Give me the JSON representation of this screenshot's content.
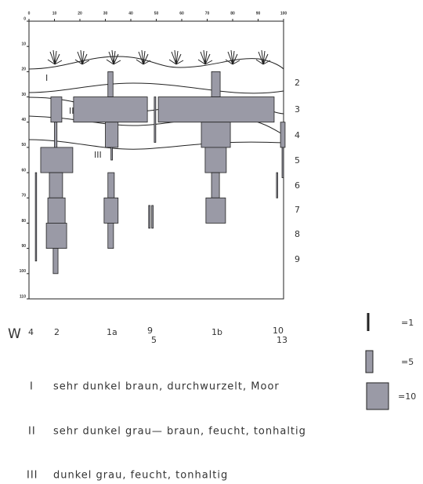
{
  "xticks": [
    0,
    10,
    20,
    30,
    40,
    50,
    60,
    70,
    80,
    90,
    100
  ],
  "yticks": [
    0,
    10,
    20,
    30,
    40,
    50,
    60,
    70,
    80,
    90,
    100,
    110
  ],
  "horizon_labels": [
    "I",
    "II",
    "III"
  ],
  "depth_labels": [
    "2",
    "3",
    "4",
    "5",
    "6",
    "7",
    "8",
    "9"
  ],
  "profile_labels": [
    "W",
    "4",
    "2",
    "1a",
    "9",
    "5",
    "1b",
    "10",
    "13"
  ],
  "rects": [
    {
      "x1": 8.6,
      "x2": 12.9,
      "d1": 30,
      "d2": 40
    },
    {
      "x1": 10,
      "x2": 11,
      "d1": 40,
      "d2": 50
    },
    {
      "x1": 4.6,
      "x2": 17.2,
      "d1": 50,
      "d2": 60
    },
    {
      "x1": 8,
      "x2": 13.2,
      "d1": 60,
      "d2": 70
    },
    {
      "x1": 7.4,
      "x2": 14.2,
      "d1": 70,
      "d2": 80
    },
    {
      "x1": 6.8,
      "x2": 14.8,
      "d1": 80,
      "d2": 90
    },
    {
      "x1": 9.5,
      "x2": 11.4,
      "d1": 90,
      "d2": 100
    },
    {
      "x1": 2.5,
      "x2": 3,
      "d1": 60,
      "d2": 95
    },
    {
      "x1": 31,
      "x2": 33,
      "d1": 20,
      "d2": 30
    },
    {
      "x1": 17.5,
      "x2": 46.5,
      "d1": 30,
      "d2": 40
    },
    {
      "x1": 30,
      "x2": 35,
      "d1": 40,
      "d2": 50
    },
    {
      "x1": 32.2,
      "x2": 32.8,
      "d1": 50,
      "d2": 55
    },
    {
      "x1": 31,
      "x2": 33.5,
      "d1": 60,
      "d2": 70
    },
    {
      "x1": 29.5,
      "x2": 35,
      "d1": 70,
      "d2": 80
    },
    {
      "x1": 31,
      "x2": 33.2,
      "d1": 80,
      "d2": 90
    },
    {
      "x1": 49.2,
      "x2": 49.8,
      "d1": 30,
      "d2": 48
    },
    {
      "x1": 47,
      "x2": 47.6,
      "d1": 73,
      "d2": 82
    },
    {
      "x1": 48.2,
      "x2": 48.8,
      "d1": 73,
      "d2": 82
    },
    {
      "x1": 71.7,
      "x2": 75.1,
      "d1": 20,
      "d2": 30
    },
    {
      "x1": 50.8,
      "x2": 96.3,
      "d1": 30,
      "d2": 40
    },
    {
      "x1": 67.7,
      "x2": 79.1,
      "d1": 40,
      "d2": 50
    },
    {
      "x1": 69.2,
      "x2": 77.5,
      "d1": 50,
      "d2": 60
    },
    {
      "x1": 71.7,
      "x2": 74.8,
      "d1": 60,
      "d2": 70
    },
    {
      "x1": 69.5,
      "x2": 77.2,
      "d1": 70,
      "d2": 80
    },
    {
      "x1": 98.8,
      "x2": 100.6,
      "d1": 40,
      "d2": 50
    },
    {
      "x1": 99.4,
      "x2": 100,
      "d1": 50,
      "d2": 62
    },
    {
      "x1": 97.2,
      "x2": 97.7,
      "d1": 60,
      "d2": 70
    }
  ],
  "legend": [
    "=1",
    "=5",
    "=10"
  ],
  "descriptions": [
    {
      "numeral": "I",
      "text": "sehr dunkel braun, durchwurzelt, Moor"
    },
    {
      "numeral": "II",
      "text": "sehr dunkel grau— braun, feucht, tonhaltig"
    },
    {
      "numeral": "III",
      "text": "dunkel grau, feucht, tonhaltig"
    }
  ]
}
